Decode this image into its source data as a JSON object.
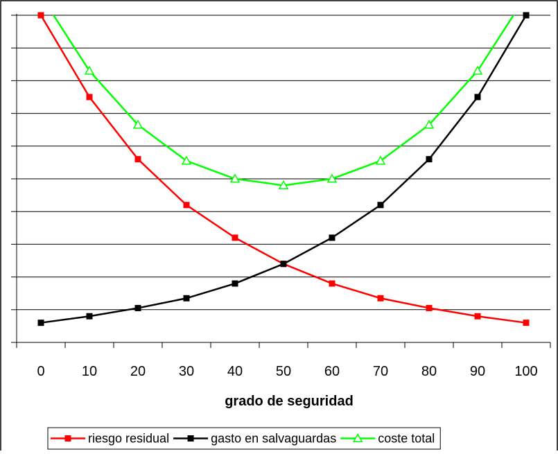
{
  "chart_data": {
    "type": "line",
    "title": "",
    "xlabel": "grado de seguridad",
    "ylabel": "",
    "categories": [
      "0",
      "10",
      "20",
      "30",
      "40",
      "50",
      "60",
      "70",
      "80",
      "90",
      "100"
    ],
    "ylim": [
      0,
      10
    ],
    "grid": true,
    "legend_position": "bottom",
    "series": [
      {
        "name": "riesgo residual",
        "color": "#ff0000",
        "marker": "square",
        "values": [
          10.0,
          7.5,
          5.6,
          4.2,
          3.2,
          2.4,
          1.8,
          1.35,
          1.05,
          0.8,
          0.6
        ]
      },
      {
        "name": "gasto en salvaguardas",
        "color": "#000000",
        "marker": "square",
        "values": [
          0.6,
          0.8,
          1.05,
          1.35,
          1.8,
          2.4,
          3.2,
          4.2,
          5.6,
          7.5,
          10.0
        ]
      },
      {
        "name": "coste total",
        "color": "#00ff00",
        "marker": "triangle",
        "values": [
          10.6,
          8.3,
          6.65,
          5.55,
          5.0,
          4.8,
          5.0,
          5.55,
          6.65,
          8.3,
          10.6
        ]
      }
    ]
  }
}
